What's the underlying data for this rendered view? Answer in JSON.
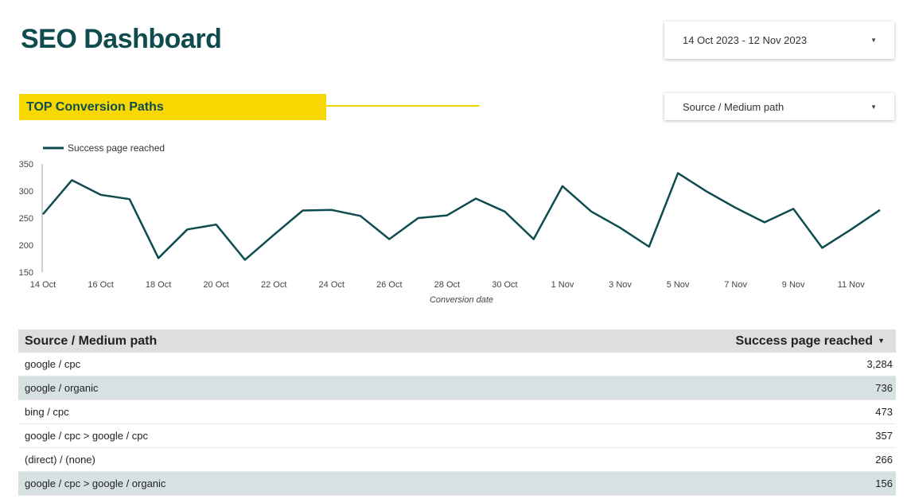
{
  "header": {
    "title": "SEO Dashboard"
  },
  "date_range": {
    "label": "14 Oct 2023 - 12 Nov 2023"
  },
  "section": {
    "title": "TOP Conversion Paths"
  },
  "filter": {
    "label": "Source / Medium path"
  },
  "colors": {
    "brand": "#0f4c4f",
    "accent": "#f7d800",
    "row_alt": "#d8e1e1",
    "header_bg": "#dedede"
  },
  "chart_data": {
    "type": "line",
    "legend_position": "top-left",
    "grid": false,
    "xlabel": "Conversion date",
    "ylabel": "",
    "ylim": [
      150,
      350
    ],
    "yticks": [
      "350",
      "300",
      "250",
      "200",
      "150"
    ],
    "x_tick_labels": [
      "14 Oct",
      "16 Oct",
      "18 Oct",
      "20 Oct",
      "22 Oct",
      "24 Oct",
      "26 Oct",
      "28 Oct",
      "30 Oct",
      "1 Nov",
      "3 Nov",
      "5 Nov",
      "7 Nov",
      "9 Nov",
      "11 Nov"
    ],
    "x": [
      "14 Oct",
      "15 Oct",
      "16 Oct",
      "17 Oct",
      "18 Oct",
      "19 Oct",
      "20 Oct",
      "21 Oct",
      "22 Oct",
      "23 Oct",
      "24 Oct",
      "25 Oct",
      "26 Oct",
      "27 Oct",
      "28 Oct",
      "29 Oct",
      "30 Oct",
      "31 Oct",
      "1 Nov",
      "2 Nov",
      "3 Nov",
      "4 Nov",
      "5 Nov",
      "6 Nov",
      "7 Nov",
      "8 Nov",
      "9 Nov",
      "10 Nov",
      "11 Nov",
      "12 Nov"
    ],
    "series": [
      {
        "name": "Success page reached",
        "color": "#0f4c4f",
        "values": [
          257,
          320,
          293,
          285,
          176,
          229,
          238,
          173,
          219,
          264,
          265,
          254,
          211,
          250,
          255,
          286,
          262,
          211,
          309,
          262,
          232,
          197,
          333,
          299,
          269,
          242,
          267,
          195,
          229,
          265
        ]
      }
    ]
  },
  "table": {
    "columns": [
      "Source / Medium path",
      "Success page reached"
    ],
    "sort_icon": "caret-down-icon",
    "rows": [
      {
        "path": "google / cpc",
        "value": "3,284"
      },
      {
        "path": "google / organic",
        "value": "736"
      },
      {
        "path": "bing / cpc",
        "value": "473"
      },
      {
        "path": "google / cpc > google / cpc",
        "value": "357"
      },
      {
        "path": "(direct) / (none)",
        "value": "266"
      },
      {
        "path": "google / cpc > google / organic",
        "value": "156"
      }
    ]
  }
}
